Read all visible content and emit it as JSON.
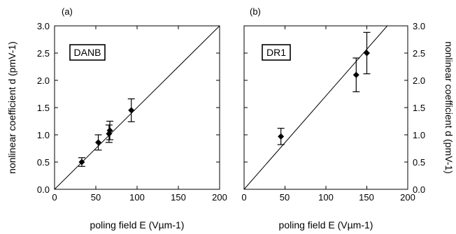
{
  "chart_data": [
    {
      "type": "scatter",
      "panel_label": "(a)",
      "annotation": "DANB",
      "xlabel": "poling field E (Vµm-1)",
      "ylabel": "nonlinear coefficient d (pmV-1)",
      "xlim": [
        0,
        200
      ],
      "ylim": [
        0,
        3.0
      ],
      "xticks": [
        0,
        50,
        100,
        150,
        200
      ],
      "yticks": [
        0.0,
        0.5,
        1.0,
        1.5,
        2.0,
        2.5,
        3.0
      ],
      "ytick_labels": [
        "0.0",
        "0.5",
        "1.0",
        "1.5",
        "2.0",
        "2.5",
        "3.0"
      ],
      "y_axis_side": "left",
      "points": [
        {
          "x": 33,
          "y": 0.5,
          "err": 0.08
        },
        {
          "x": 53,
          "y": 0.86,
          "err": 0.14
        },
        {
          "x": 66,
          "y": 1.02,
          "err": 0.16
        },
        {
          "x": 67,
          "y": 1.08,
          "err": 0.17
        },
        {
          "x": 93,
          "y": 1.45,
          "err": 0.21
        }
      ],
      "fit_line": {
        "x": [
          0,
          200
        ],
        "y": [
          0,
          3.0
        ]
      }
    },
    {
      "type": "scatter",
      "panel_label": "(b)",
      "annotation": "DR1",
      "xlabel": "poling field E (Vµm-1)",
      "ylabel": "nonlinear coefficient d (pmV-1)",
      "xlim": [
        0,
        200
      ],
      "ylim": [
        0,
        3.0
      ],
      "xticks": [
        0,
        50,
        100,
        150,
        200
      ],
      "yticks": [
        0.0,
        0.5,
        1.0,
        1.5,
        2.0,
        2.5,
        3.0
      ],
      "ytick_labels": [
        "0.0",
        "0.5",
        "1.0",
        "1.5",
        "2.0",
        "2.5",
        "3.0"
      ],
      "y_axis_side": "right",
      "points": [
        {
          "x": 45,
          "y": 0.97,
          "err": 0.15
        },
        {
          "x": 137,
          "y": 2.1,
          "err": 0.31
        },
        {
          "x": 150,
          "y": 2.5,
          "err": 0.38
        }
      ],
      "fit_line": {
        "x": [
          0,
          175
        ],
        "y": [
          0,
          3.0
        ]
      }
    }
  ]
}
